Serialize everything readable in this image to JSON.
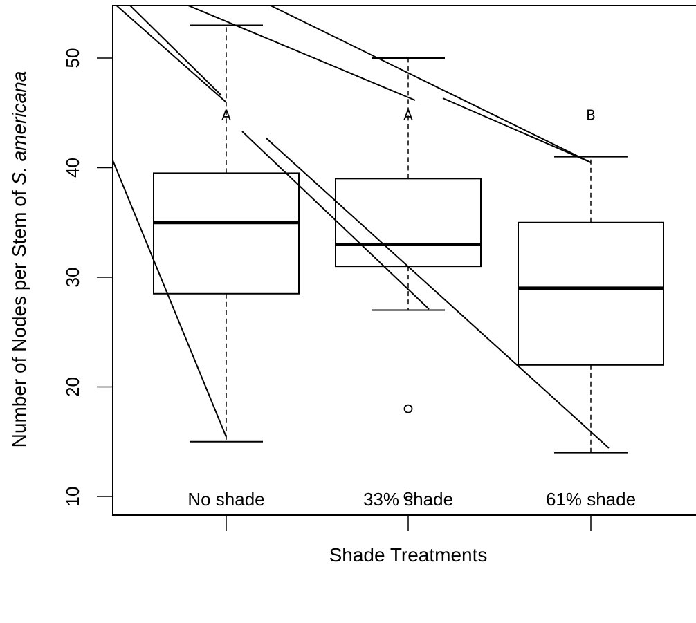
{
  "chart_data": {
    "type": "box",
    "xlabel": "Shade Treatments",
    "ylabel_parts": [
      "Number of Nodes per Stem of ",
      "S. americana"
    ],
    "ylim": [
      8.3,
      55
    ],
    "y_ticks": [
      10,
      20,
      30,
      40,
      50
    ],
    "y_tick_labels": [
      "10",
      "20",
      "30",
      "40",
      "50"
    ],
    "categories": [
      "No shade",
      "33% shade",
      "61% shade"
    ],
    "boxes": [
      {
        "category": "No shade",
        "min": 15,
        "q1": 28.5,
        "median": 35,
        "q3": 39.5,
        "max": 53,
        "outliers": [],
        "letter": "A"
      },
      {
        "category": "33% shade",
        "min": 27,
        "q1": 31,
        "median": 33,
        "q3": 39,
        "max": 50,
        "outliers": [
          18,
          10
        ],
        "letter": "A"
      },
      {
        "category": "61% shade",
        "min": 14,
        "q1": 22,
        "median": 29,
        "q3": 35,
        "max": 41,
        "outliers": [],
        "letter": "B"
      }
    ],
    "letter_y": 44.8,
    "grid": false,
    "legend": "none",
    "colors": {
      "box_fill": "#ffffff",
      "stroke": "#000000"
    }
  }
}
